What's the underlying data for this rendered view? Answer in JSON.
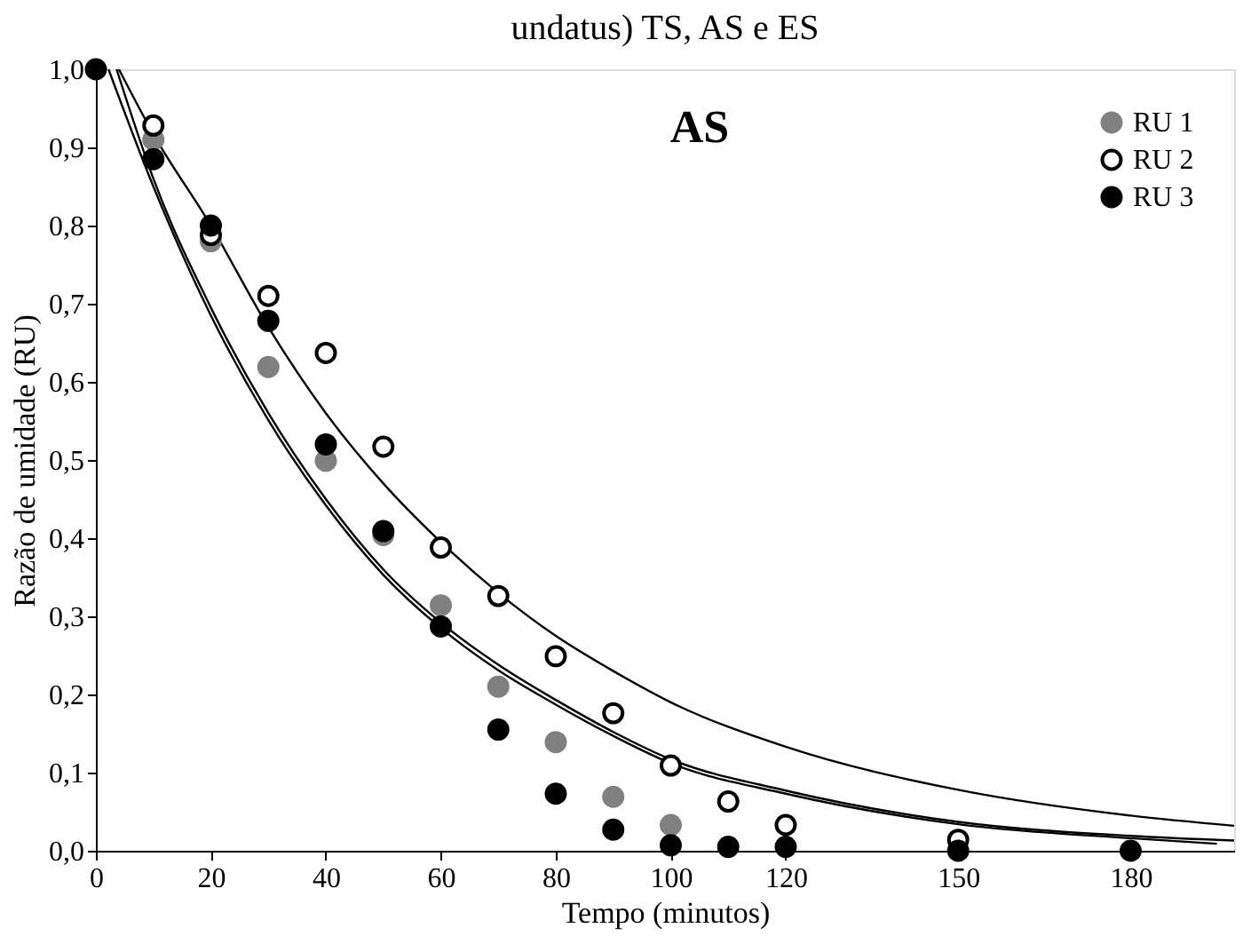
{
  "chart_data": {
    "type": "scatter",
    "title": "undatus) TS, AS e ES",
    "xlabel": "Tempo (minutos)",
    "ylabel": "Razão de umidade (RU)",
    "annotations": [
      "AS"
    ],
    "x": [
      0,
      10,
      20,
      30,
      40,
      50,
      60,
      70,
      80,
      90,
      100,
      110,
      120,
      150,
      180
    ],
    "series": [
      {
        "name": "RU 1",
        "color": "#808080",
        "marker": "circle",
        "values": [
          null,
          0.91,
          0.78,
          0.619,
          0.499,
          0.404,
          0.314,
          0.21,
          0.139,
          0.069,
          0.033,
          null,
          null,
          null,
          null
        ]
      },
      {
        "name": "RU 2",
        "color": "#ffffff",
        "marker": "circle",
        "values": [
          null,
          0.928,
          0.788,
          0.71,
          0.637,
          0.517,
          0.388,
          0.326,
          0.249,
          0.176,
          0.109,
          0.063,
          0.033,
          0.014,
          null
        ]
      },
      {
        "name": "RU 3",
        "color": "#000000",
        "marker": "circle",
        "values": [
          1.0,
          0.885,
          0.8,
          0.678,
          0.52,
          0.409,
          0.287,
          0.155,
          0.073,
          0.027,
          0.007,
          0.005,
          0.005,
          0.0,
          0.0
        ]
      },
      {
        "type": "line",
        "color": "#000000",
        "x": [
          4,
          10,
          20,
          30,
          40,
          50,
          60,
          70,
          80,
          90,
          100,
          120,
          150,
          180,
          198
        ],
        "values": [
          1.0,
          0.917,
          0.8,
          0.67,
          0.56,
          0.47,
          0.395,
          0.33,
          0.275,
          0.23,
          0.19,
          0.133,
          0.078,
          0.045,
          0.032
        ]
      },
      {
        "type": "line",
        "color": "#000000",
        "x": [
          3.6,
          10,
          20,
          30,
          40,
          50,
          60,
          70,
          80,
          90,
          100,
          120,
          150,
          180,
          198
        ],
        "values": [
          1.0,
          0.86,
          0.695,
          0.56,
          0.45,
          0.36,
          0.292,
          0.238,
          0.193,
          0.152,
          0.117,
          0.077,
          0.037,
          0.019,
          0.013
        ]
      },
      {
        "type": "line",
        "color": "#000000",
        "x": [
          2.2,
          10,
          20,
          30,
          40,
          50,
          60,
          70,
          80,
          90,
          100,
          120,
          150,
          180,
          195
        ],
        "values": [
          1.0,
          0.85,
          0.685,
          0.551,
          0.442,
          0.353,
          0.285,
          0.231,
          0.187,
          0.147,
          0.112,
          0.073,
          0.034,
          0.016,
          0.009
        ]
      }
    ],
    "xlim": [
      0,
      198
    ],
    "ylim": [
      0,
      1.0
    ],
    "xticks": [
      0,
      20,
      40,
      60,
      80,
      100,
      120,
      150,
      180
    ],
    "yticks": [
      {
        "value": 0,
        "label": "0,0"
      },
      {
        "value": 0.1,
        "label": "0,1"
      },
      {
        "value": 0.2,
        "label": "0,2"
      },
      {
        "value": 0.3,
        "label": "0,3"
      },
      {
        "value": 0.4,
        "label": "0,4"
      },
      {
        "value": 0.5,
        "label": "0,5"
      },
      {
        "value": 0.6,
        "label": "0,6"
      },
      {
        "value": 0.7,
        "label": "0,7"
      },
      {
        "value": 0.8,
        "label": "0,8"
      },
      {
        "value": 0.9,
        "label": "0,9"
      },
      {
        "value": 1.0,
        "label": "1,0"
      }
    ],
    "legend": "top right",
    "grid": false
  }
}
